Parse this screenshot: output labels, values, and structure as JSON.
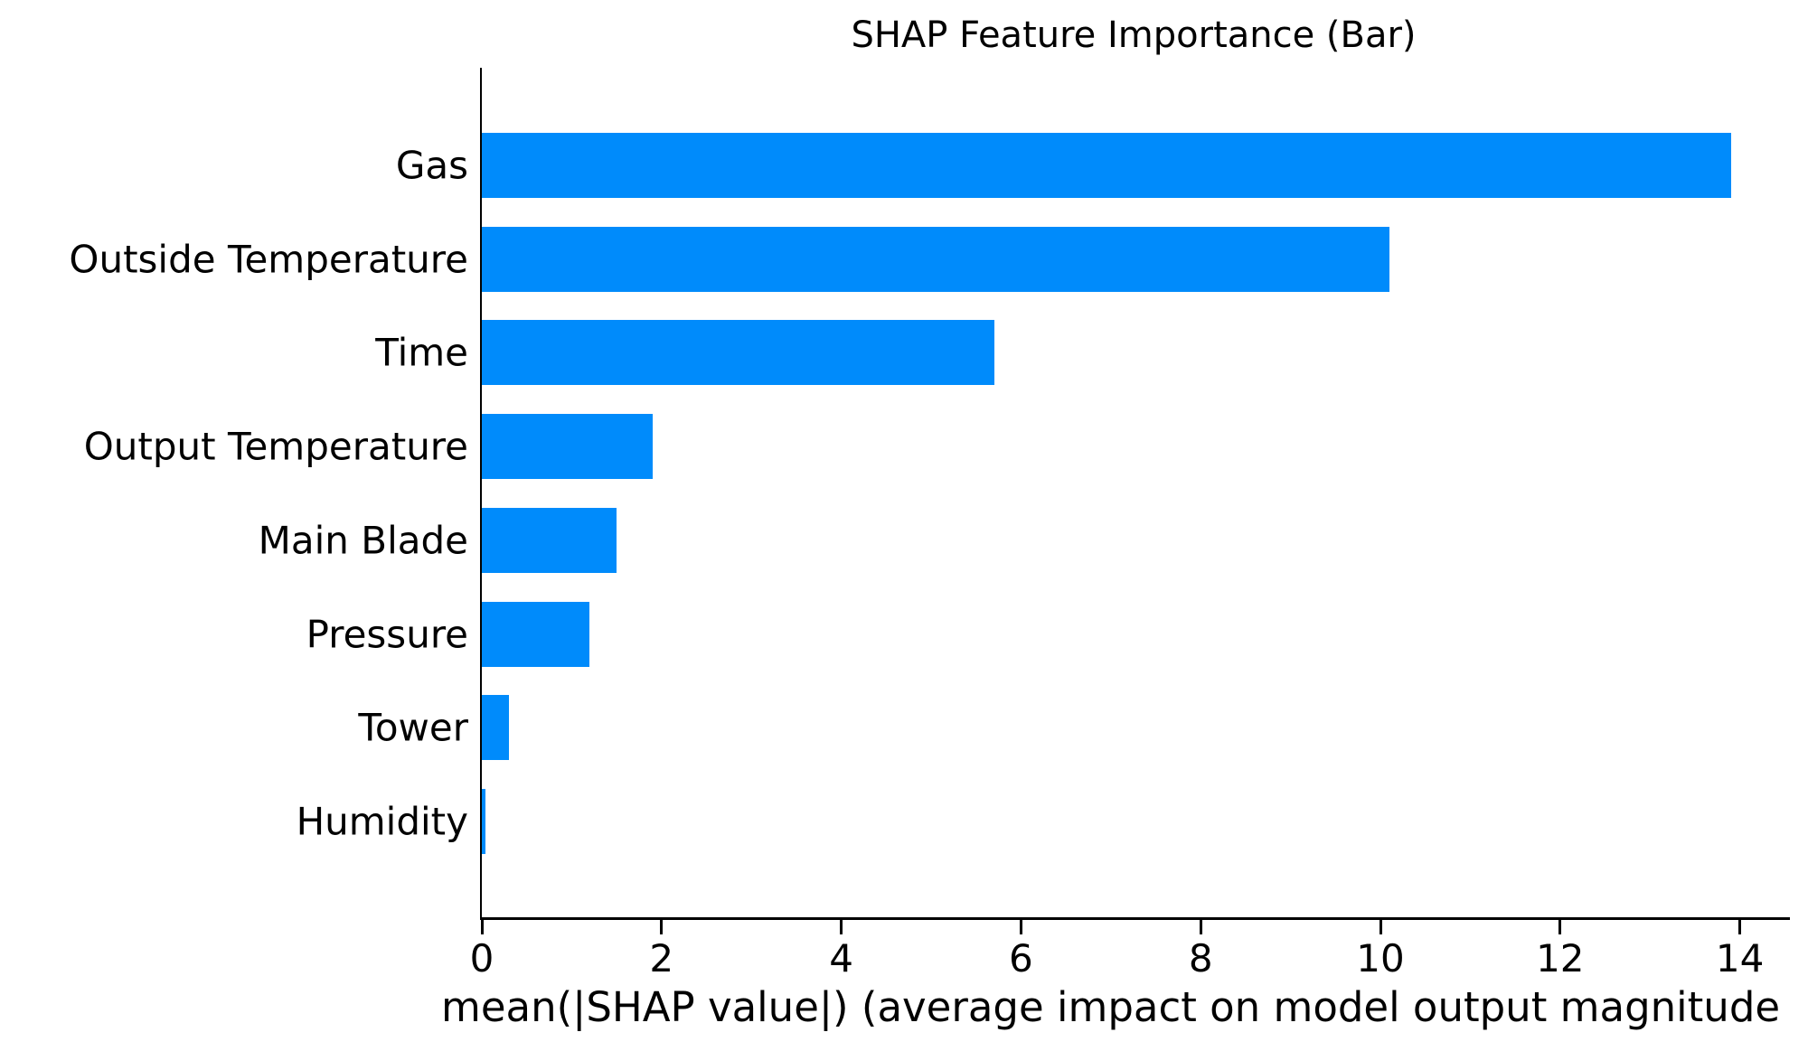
{
  "title": "SHAP Feature Importance (Bar)",
  "xlabel": "mean(|SHAP value|) (average impact on model output magnitude",
  "colors": {
    "bar": "#008bfb",
    "text": "#000000",
    "axis": "#000000",
    "background": "#ffffff"
  },
  "chart_data": {
    "type": "bar",
    "orientation": "horizontal",
    "title": "SHAP Feature Importance (Bar)",
    "xlabel": "mean(|SHAP value|) (average impact on model output magnitude",
    "ylabel": "",
    "categories": [
      "Gas",
      "Outside Temperature",
      "Time",
      "Output Temperature",
      "Main Blade",
      "Pressure",
      "Tower",
      "Humidity"
    ],
    "values": [
      13.9,
      10.1,
      5.7,
      1.9,
      1.5,
      1.2,
      0.3,
      0.04
    ],
    "xticks": [
      0,
      2,
      4,
      6,
      8,
      10,
      12,
      14
    ],
    "xlim": [
      0,
      14.6
    ],
    "grid": false,
    "legend": null,
    "bar_color": "#008bfb"
  }
}
